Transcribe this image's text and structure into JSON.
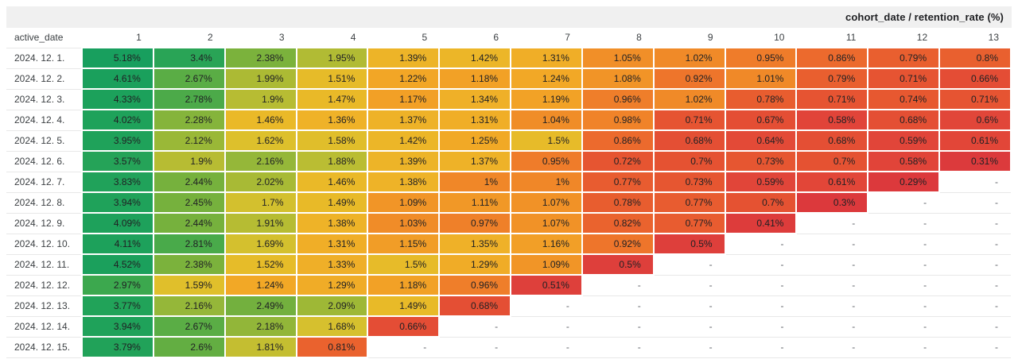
{
  "header": {
    "title": "cohort_date / retention_rate (%)"
  },
  "columns": {
    "row_label": "active_date",
    "cohorts": [
      "1",
      "2",
      "3",
      "4",
      "5",
      "6",
      "7",
      "8",
      "9",
      "10",
      "11",
      "12",
      "13"
    ]
  },
  "cells": {
    "missing_label": "-"
  },
  "colors": {
    "surface_bar": "#f0f0f0",
    "grid_line": "#e8e8e8",
    "cell_gap": "#ffffff",
    "value_text": "#202124",
    "label_text": "#3c4043",
    "missing_text": "#5f6368",
    "scale": [
      [
        0.29,
        "#dc393c"
      ],
      [
        0.5,
        "#de3f3b"
      ],
      [
        0.62,
        "#e24738"
      ],
      [
        0.72,
        "#e65531"
      ],
      [
        0.82,
        "#ea632e"
      ],
      [
        0.92,
        "#ee752b"
      ],
      [
        1.0,
        "#f08728"
      ],
      [
        1.1,
        "#f19727"
      ],
      [
        1.22,
        "#f2a626"
      ],
      [
        1.35,
        "#efb128"
      ],
      [
        1.48,
        "#e9ba28"
      ],
      [
        1.62,
        "#ddc02c"
      ],
      [
        1.75,
        "#cdc030"
      ],
      [
        1.9,
        "#b7bc33"
      ],
      [
        2.05,
        "#a4b935"
      ],
      [
        2.2,
        "#8fb63a"
      ],
      [
        2.35,
        "#7db33c"
      ],
      [
        2.5,
        "#72b03e"
      ],
      [
        2.65,
        "#5cad44"
      ],
      [
        2.85,
        "#44a94c"
      ],
      [
        3.1,
        "#33a751"
      ],
      [
        3.45,
        "#27a457"
      ],
      [
        3.9,
        "#1fa25a"
      ],
      [
        4.6,
        "#1aa05c"
      ],
      [
        5.2,
        "#189f5e"
      ]
    ]
  },
  "chart_data": {
    "type": "heatmap",
    "title": "cohort_date / retention_rate (%)",
    "row_axis_label": "active_date",
    "column_axis_label": "cohort_date",
    "value_label": "retention_rate (%)",
    "columns": [
      1,
      2,
      3,
      4,
      5,
      6,
      7,
      8,
      9,
      10,
      11,
      12,
      13
    ],
    "rows": [
      {
        "date": "2024. 12. 1.",
        "values": [
          "5.18%",
          "3.4%",
          "2.38%",
          "1.95%",
          "1.39%",
          "1.42%",
          "1.31%",
          "1.05%",
          "1.02%",
          "0.95%",
          "0.86%",
          "0.79%",
          "0.8%"
        ]
      },
      {
        "date": "2024. 12. 2.",
        "values": [
          "4.61%",
          "2.67%",
          "1.99%",
          "1.51%",
          "1.22%",
          "1.18%",
          "1.24%",
          "1.08%",
          "0.92%",
          "1.01%",
          "0.79%",
          "0.71%",
          "0.66%"
        ]
      },
      {
        "date": "2024. 12. 3.",
        "values": [
          "4.33%",
          "2.78%",
          "1.9%",
          "1.47%",
          "1.17%",
          "1.34%",
          "1.19%",
          "0.96%",
          "1.02%",
          "0.78%",
          "0.71%",
          "0.74%",
          "0.71%"
        ]
      },
      {
        "date": "2024. 12. 4.",
        "values": [
          "4.02%",
          "2.28%",
          "1.46%",
          "1.36%",
          "1.37%",
          "1.31%",
          "1.04%",
          "0.98%",
          "0.71%",
          "0.67%",
          "0.58%",
          "0.68%",
          "0.6%"
        ]
      },
      {
        "date": "2024. 12. 5.",
        "values": [
          "3.95%",
          "2.12%",
          "1.62%",
          "1.58%",
          "1.42%",
          "1.25%",
          "1.5%",
          "0.86%",
          "0.68%",
          "0.64%",
          "0.68%",
          "0.59%",
          "0.61%"
        ]
      },
      {
        "date": "2024. 12. 6.",
        "values": [
          "3.57%",
          "1.9%",
          "2.16%",
          "1.88%",
          "1.39%",
          "1.37%",
          "0.95%",
          "0.72%",
          "0.7%",
          "0.73%",
          "0.7%",
          "0.58%",
          "0.31%"
        ]
      },
      {
        "date": "2024. 12. 7.",
        "values": [
          "3.83%",
          "2.44%",
          "2.02%",
          "1.46%",
          "1.38%",
          "1%",
          "1%",
          "0.77%",
          "0.73%",
          "0.59%",
          "0.61%",
          "0.29%",
          "-"
        ]
      },
      {
        "date": "2024. 12. 8.",
        "values": [
          "3.94%",
          "2.45%",
          "1.7%",
          "1.49%",
          "1.09%",
          "1.11%",
          "1.07%",
          "0.78%",
          "0.77%",
          "0.7%",
          "0.3%",
          "-",
          "-"
        ]
      },
      {
        "date": "2024. 12. 9.",
        "values": [
          "4.09%",
          "2.44%",
          "1.91%",
          "1.38%",
          "1.03%",
          "0.97%",
          "1.07%",
          "0.82%",
          "0.77%",
          "0.41%",
          "-",
          "-",
          "-"
        ]
      },
      {
        "date": "2024. 12. 10.",
        "values": [
          "4.11%",
          "2.81%",
          "1.69%",
          "1.31%",
          "1.15%",
          "1.35%",
          "1.16%",
          "0.92%",
          "0.5%",
          "-",
          "-",
          "-",
          "-"
        ]
      },
      {
        "date": "2024. 12. 11.",
        "values": [
          "4.52%",
          "2.38%",
          "1.52%",
          "1.33%",
          "1.5%",
          "1.29%",
          "1.09%",
          "0.5%",
          "-",
          "-",
          "-",
          "-",
          "-"
        ]
      },
      {
        "date": "2024. 12. 12.",
        "values": [
          "2.97%",
          "1.59%",
          "1.24%",
          "1.29%",
          "1.18%",
          "0.96%",
          "0.51%",
          "-",
          "-",
          "-",
          "-",
          "-",
          "-"
        ]
      },
      {
        "date": "2024. 12. 13.",
        "values": [
          "3.77%",
          "2.16%",
          "2.49%",
          "2.09%",
          "1.49%",
          "0.68%",
          "-",
          "-",
          "-",
          "-",
          "-",
          "-",
          "-"
        ]
      },
      {
        "date": "2024. 12. 14.",
        "values": [
          "3.94%",
          "2.67%",
          "2.18%",
          "1.68%",
          "0.66%",
          "-",
          "-",
          "-",
          "-",
          "-",
          "-",
          "-",
          "-"
        ]
      },
      {
        "date": "2024. 12. 15.",
        "values": [
          "3.79%",
          "2.6%",
          "1.81%",
          "0.81%",
          "-",
          "-",
          "-",
          "-",
          "-",
          "-",
          "-",
          "-",
          "-"
        ]
      }
    ]
  }
}
